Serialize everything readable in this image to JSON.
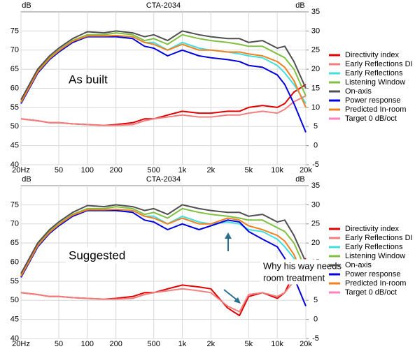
{
  "chart_data": [
    {
      "type": "line",
      "title": "CTA-2034",
      "ylabel": "dB",
      "y2label": "dB",
      "log_x": true,
      "grid": true,
      "legend": "right",
      "annotations": [
        "As built"
      ],
      "x": [
        20,
        30,
        40,
        50,
        70,
        100,
        150,
        200,
        300,
        400,
        500,
        700,
        1000,
        1500,
        2000,
        3000,
        4000,
        5000,
        7000,
        10000,
        12000,
        15000,
        20000
      ],
      "xlim": [
        20,
        20000
      ],
      "xticks": [
        {
          "value": 20,
          "label": "20Hz"
        },
        50,
        100,
        200,
        500,
        {
          "value": 1000,
          "label": "1k"
        },
        {
          "value": 2000,
          "label": "2k"
        },
        {
          "value": 5000,
          "label": "5k"
        },
        {
          "value": 10000,
          "label": "10k"
        },
        {
          "value": 20000,
          "label": "20k"
        }
      ],
      "ylim": [
        40,
        80
      ],
      "yticks": [
        40,
        45,
        50,
        55,
        60,
        65,
        70,
        75
      ],
      "y2lim": [
        -5,
        35
      ],
      "y2ticks": [
        -5,
        0,
        5,
        10,
        15,
        20,
        25,
        30,
        35
      ],
      "series": [
        {
          "name": "Directivity index",
          "color": "#e00000",
          "axis": "y2",
          "values": [
            7,
            6.5,
            6,
            6,
            5.7,
            5.5,
            5.3,
            5.5,
            6,
            7,
            7,
            8,
            9,
            8.5,
            8.5,
            9,
            9,
            10,
            10.5,
            10,
            11,
            14,
            16
          ]
        },
        {
          "name": "Early Reflections DI",
          "color": "#f08080",
          "axis": "y2",
          "values": [
            7,
            6.5,
            6,
            6,
            5.7,
            5.5,
            5.3,
            5.3,
            5.5,
            6.5,
            7,
            7.5,
            8,
            7.5,
            7.5,
            8,
            8,
            8.5,
            9,
            8.5,
            9.5,
            11.5,
            13
          ]
        },
        {
          "name": "Early Reflections",
          "color": "#40e0e0",
          "values": [
            56,
            64,
            67.5,
            69.5,
            72,
            73.5,
            73.5,
            73.5,
            73.5,
            72,
            72,
            70,
            72,
            70.5,
            70,
            69.5,
            69,
            68.5,
            68,
            66,
            64,
            61,
            56
          ]
        },
        {
          "name": "Listening Window",
          "color": "#80c040",
          "values": [
            56.5,
            64.5,
            68,
            70,
            72.5,
            74,
            74,
            74.5,
            74,
            72.5,
            73,
            71.5,
            74,
            73,
            72.5,
            72,
            71.5,
            71,
            71,
            69,
            68,
            65,
            58
          ]
        },
        {
          "name": "On-axis",
          "color": "#505050",
          "values": [
            57,
            65,
            68.5,
            70.5,
            73,
            74.8,
            74.5,
            75,
            74.5,
            73.5,
            74,
            72.5,
            75,
            74,
            73.5,
            73,
            73,
            72,
            72.5,
            70.5,
            71,
            67,
            60
          ]
        },
        {
          "name": "Power response",
          "color": "#0000e0",
          "values": [
            56,
            64,
            67.5,
            69.5,
            72,
            73.5,
            73.5,
            73.5,
            73,
            71,
            70.5,
            68.5,
            70,
            68.5,
            68,
            67.5,
            67,
            66,
            65.5,
            63.5,
            61,
            56,
            48.5
          ]
        },
        {
          "name": "Predicted In-room",
          "color": "#f08020",
          "values": [
            56.3,
            64.3,
            67.8,
            69.8,
            72.3,
            73.7,
            73.7,
            73.8,
            73.5,
            72,
            71.5,
            70,
            71.5,
            70,
            70,
            69.5,
            69.5,
            69,
            68.5,
            67,
            65.5,
            62,
            55
          ]
        },
        {
          "name": "Target 0 dB/oct",
          "color": "#ff80c0",
          "values": [
            null,
            null,
            null,
            null,
            null,
            null,
            null,
            null,
            null,
            null,
            null,
            null,
            null,
            null,
            null,
            null,
            null,
            null,
            null,
            null,
            null,
            null,
            null
          ]
        }
      ]
    },
    {
      "type": "line",
      "title": "CTA-2034",
      "ylabel": "dB",
      "y2label": "dB",
      "log_x": true,
      "grid": true,
      "legend": "right",
      "annotations": [
        "Suggested",
        "Why his way needs",
        "room treatment"
      ],
      "x": [
        20,
        30,
        40,
        50,
        70,
        100,
        150,
        200,
        300,
        400,
        500,
        700,
        1000,
        1500,
        2000,
        3000,
        4000,
        5000,
        7000,
        10000,
        12000,
        15000,
        20000
      ],
      "xlim": [
        20,
        20000
      ],
      "xticks": [
        {
          "value": 20,
          "label": "20Hz"
        },
        50,
        100,
        200,
        500,
        {
          "value": 1000,
          "label": "1k"
        },
        {
          "value": 2000,
          "label": "2k"
        },
        {
          "value": 5000,
          "label": "5k"
        },
        {
          "value": 10000,
          "label": "10k"
        },
        {
          "value": 20000,
          "label": "20k"
        }
      ],
      "ylim": [
        40,
        80
      ],
      "yticks": [
        40,
        45,
        50,
        55,
        60,
        65,
        70,
        75
      ],
      "y2lim": [
        -5,
        35
      ],
      "y2ticks": [
        -5,
        0,
        5,
        10,
        15,
        20,
        25,
        30,
        35
      ],
      "series": [
        {
          "name": "Directivity index",
          "color": "#e00000",
          "axis": "y2",
          "values": [
            7,
            6.5,
            6,
            6,
            5.7,
            5.5,
            5.3,
            5.5,
            6,
            7,
            7,
            8,
            9,
            8.5,
            8,
            3,
            1,
            6,
            7,
            5.5,
            7,
            12,
            16
          ]
        },
        {
          "name": "Early Reflections DI",
          "color": "#f08080",
          "axis": "y2",
          "values": [
            7,
            6.5,
            6,
            6,
            5.7,
            5.5,
            5.3,
            5.3,
            5.5,
            6.5,
            7,
            7.5,
            8,
            7.5,
            7,
            3.5,
            2,
            6.5,
            7,
            6,
            7,
            10,
            13
          ]
        },
        {
          "name": "Early Reflections",
          "color": "#40e0e0",
          "values": [
            56,
            64,
            67.5,
            69.5,
            72,
            73.5,
            73.5,
            73.5,
            73.5,
            72,
            72,
            70,
            72,
            70.5,
            70,
            70.5,
            70,
            68.5,
            68,
            66,
            64,
            61,
            56
          ]
        },
        {
          "name": "Listening Window",
          "color": "#80c040",
          "values": [
            56.5,
            64.5,
            68,
            70,
            72.5,
            74,
            74,
            74.5,
            74,
            72.5,
            73,
            71.5,
            74,
            73,
            72.5,
            72,
            71.5,
            71,
            71,
            69,
            68,
            65,
            58
          ]
        },
        {
          "name": "On-axis",
          "color": "#505050",
          "values": [
            57,
            65,
            68.5,
            70.5,
            73,
            74.8,
            74.5,
            75,
            74.5,
            73.5,
            74,
            72.5,
            75,
            74,
            73.5,
            73,
            73,
            72,
            72.5,
            70.5,
            71,
            67,
            60
          ]
        },
        {
          "name": "Power response",
          "color": "#0000e0",
          "values": [
            56,
            64,
            67.5,
            69.5,
            72,
            73.5,
            73.5,
            73.5,
            73,
            71,
            70.5,
            68.5,
            70,
            68.5,
            69.5,
            71,
            70.5,
            68,
            66,
            64,
            61,
            56,
            48.5
          ]
        },
        {
          "name": "Predicted In-room",
          "color": "#f08020",
          "values": [
            56.3,
            64.3,
            67.8,
            69.8,
            72.3,
            73.7,
            73.7,
            73.8,
            73.5,
            72,
            71.5,
            70,
            71.5,
            70,
            70,
            71.5,
            71,
            69.5,
            68.5,
            67,
            65.5,
            62,
            55
          ]
        },
        {
          "name": "Target 0 dB/oct",
          "color": "#ff80c0",
          "values": [
            null,
            null,
            null,
            null,
            null,
            null,
            null,
            null,
            null,
            null,
            null,
            null,
            null,
            null,
            null,
            null,
            null,
            null,
            null,
            null,
            null,
            null,
            null
          ]
        }
      ]
    }
  ]
}
